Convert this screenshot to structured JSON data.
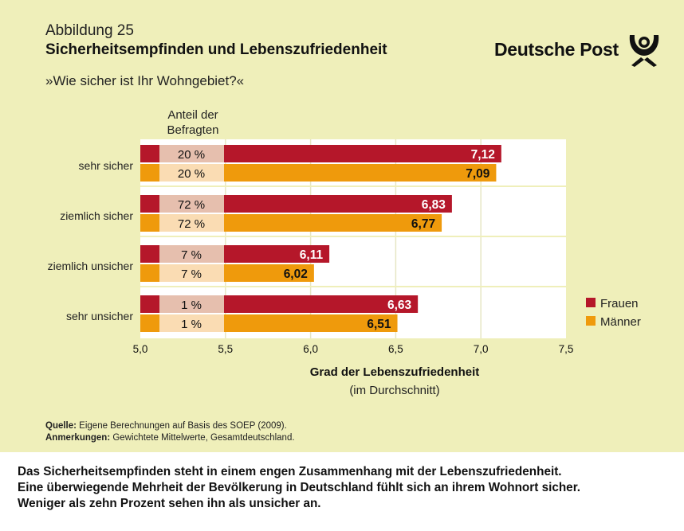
{
  "header": {
    "figure_number": "Abbildung 25",
    "title": "Sicherheitsempfinden und Lebenszufriedenheit",
    "subtitle": "»Wie sicher ist Ihr Wohngebiet?«",
    "logo_text": "Deutsche Post"
  },
  "chart_data": {
    "type": "bar",
    "orientation": "horizontal",
    "categories": [
      "sehr sicher",
      "ziemlich sicher",
      "ziemlich unsicher",
      "sehr unsicher"
    ],
    "share_header": "Anteil der Befragten",
    "share_header_lines": [
      "Anteil der",
      "Befragten"
    ],
    "series": [
      {
        "name": "Frauen",
        "color": "#b5172a",
        "share_color": "#e6bfae",
        "values": [
          7.12,
          6.83,
          6.11,
          6.63
        ],
        "labels": [
          "7,12",
          "6,83",
          "6,11",
          "6,63"
        ],
        "shares": [
          "20 %",
          "72 %",
          "7 %",
          "1 %"
        ]
      },
      {
        "name": "Männer",
        "color": "#ef9a0c",
        "share_color": "#fadcb3",
        "values": [
          7.09,
          6.77,
          6.02,
          6.51
        ],
        "labels": [
          "7,09",
          "6,77",
          "6,02",
          "6,51"
        ],
        "shares": [
          "20 %",
          "72 %",
          "7 %",
          "1 %"
        ]
      }
    ],
    "xlim": [
      5.0,
      7.5
    ],
    "xticks": [
      5.0,
      5.5,
      6.0,
      6.5,
      7.0,
      7.5
    ],
    "xtick_labels": [
      "5,0",
      "5,5",
      "6,0",
      "6,5",
      "7,0",
      "7,5"
    ],
    "xlabel": "Grad der Lebenszufriedenheit",
    "xlabel_sub": "(im Durchschnitt)",
    "grid": true,
    "legend": "right"
  },
  "notes": {
    "source_label": "Quelle:",
    "source_text": " Eigene Berechnungen auf Basis des SOEP (2009).",
    "remarks_label": "Anmerkungen:",
    "remarks_text": " Gewichtete Mittelwerte, Gesamtdeutschland."
  },
  "summary": {
    "line1": "Das Sicherheitsempfinden steht in einem engen Zusammenhang mit der Lebenszufriedenheit.",
    "line2": "Eine überwiegende Mehrheit der Bevölkerung in Deutschland fühlt sich an ihrem Wohnort sicher.",
    "line3": "Weniger als zehn Prozent sehen ihn als unsicher an."
  }
}
